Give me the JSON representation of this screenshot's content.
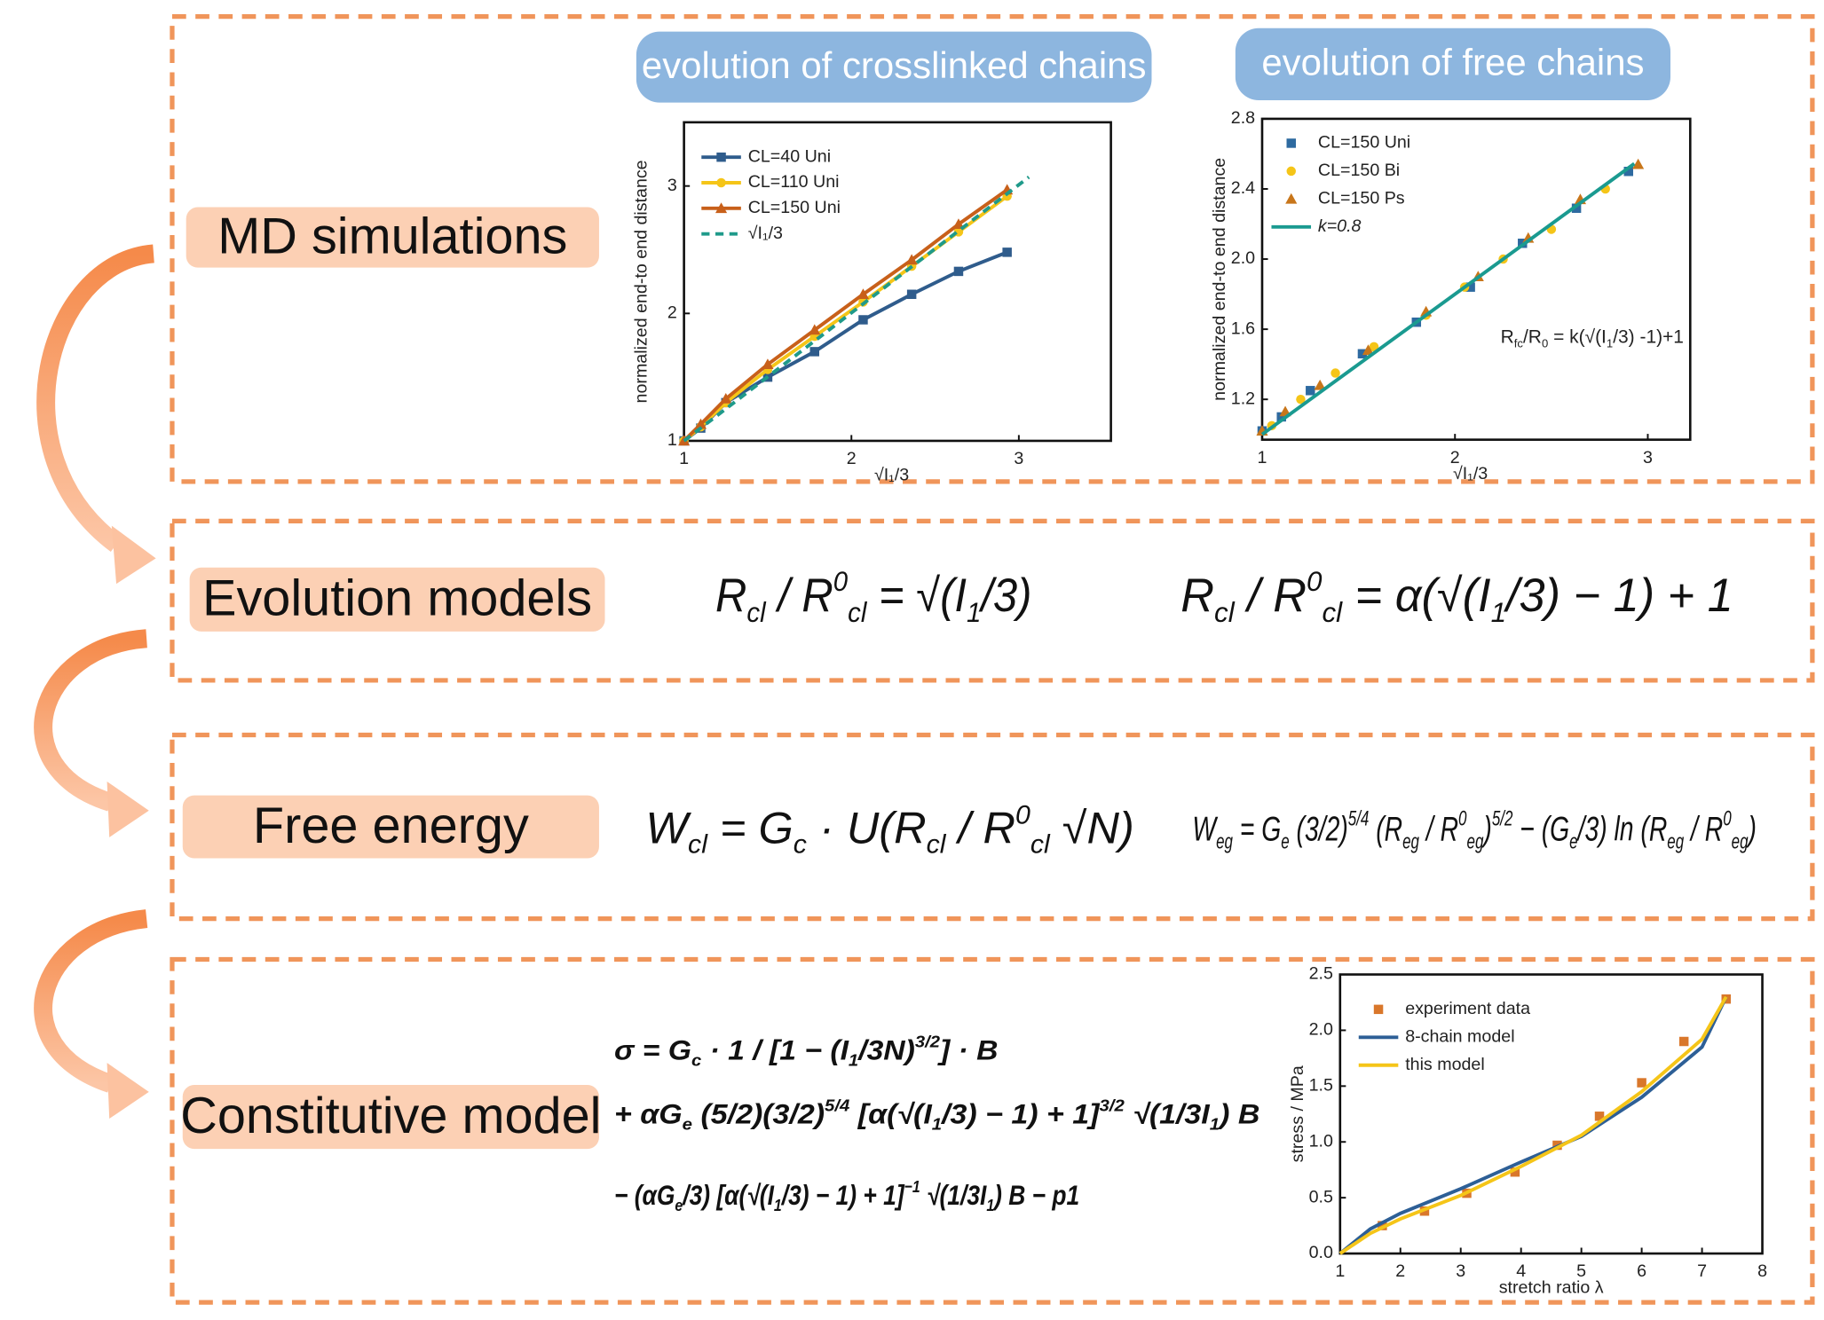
{
  "labels": [
    "MD simulations",
    "Evolution models",
    "Free energy",
    "Constitutive model"
  ],
  "headers": [
    "evolution of crosslinked chains",
    "evolution of free chains"
  ],
  "equations": {
    "evolution": [
      [
        "R",
        {
          "sub": "cl"
        },
        " / R",
        {
          "sup": "0"
        },
        {
          "sub": "cl"
        },
        " = √(I",
        {
          "sub": "1"
        },
        "/3)"
      ],
      [
        "R",
        {
          "sub": "cl"
        },
        " / R",
        {
          "sup": "0"
        },
        {
          "sub": "cl"
        },
        " = α(√(I",
        {
          "sub": "1"
        },
        "/3) − 1) + 1"
      ]
    ],
    "free_energy": [
      [
        "W",
        {
          "sub": "cl"
        },
        " = G",
        {
          "sub": "c"
        },
        " · U(R",
        {
          "sub": "cl"
        },
        " / R",
        {
          "sup": "0"
        },
        {
          "sub": "cl"
        },
        " √N)"
      ],
      [
        "W",
        {
          "sub": "eg"
        },
        " = G",
        {
          "sub": "e"
        },
        " (3/2)",
        {
          "sup": "5/4"
        },
        " (R",
        {
          "sub": "eg"
        },
        " / R",
        {
          "sup": "0"
        },
        {
          "sub": "eg"
        },
        ")",
        {
          "sup": "5/2"
        },
        " − (G",
        {
          "sub": "e"
        },
        "/3) ln (R",
        {
          "sub": "eg"
        },
        " / R",
        {
          "sup": "0"
        },
        {
          "sub": "eg"
        },
        ")"
      ]
    ],
    "constitutive": [
      [
        "σ = G",
        {
          "sub": "c"
        },
        " · 1 / [1 − (I",
        {
          "sub": "1"
        },
        "/3N)",
        {
          "sup": "3/2"
        },
        "] · B"
      ],
      [
        "+ αG",
        {
          "sub": "e"
        },
        " (5/2)(3/2)",
        {
          "sup": "5/4"
        },
        " [α(√(I",
        {
          "sub": "1"
        },
        "/3) − 1) + 1]",
        {
          "sup": "3/2"
        },
        " √(1/3I",
        {
          "sub": "1"
        },
        ") B"
      ],
      [
        "− (αG",
        {
          "sub": "e"
        },
        "/3) [α(√(I",
        {
          "sub": "1"
        },
        "/3) − 1) + 1]",
        {
          "sup": "−1"
        },
        " √(1/3I",
        {
          "sub": "1"
        },
        ") B − p1"
      ]
    ]
  },
  "chart_data": [
    {
      "type": "line",
      "xlabel": "√I₁/3",
      "ylabel": "normalized end-to end distance",
      "xlim": [
        1,
        3.55
      ],
      "ylim": [
        1,
        3.5
      ],
      "xticks": [
        1,
        2,
        3
      ],
      "yticks": [
        1,
        2,
        3
      ],
      "legend": "upper left",
      "x": [
        1,
        1.1,
        1.25,
        1.5,
        1.78,
        2.07,
        2.36,
        2.64,
        2.93
      ],
      "series": [
        {
          "name": "CL=40 Uni",
          "color": "#2f5c8c",
          "marker": "square",
          "values": [
            1,
            1.1,
            1.3,
            1.5,
            1.7,
            1.95,
            2.15,
            2.33,
            2.48
          ]
        },
        {
          "name": "CL=110 Uni",
          "color": "#f5c518",
          "marker": "circle",
          "values": [
            1,
            1.11,
            1.3,
            1.56,
            1.82,
            2.09,
            2.37,
            2.64,
            2.92
          ]
        },
        {
          "name": "CL=150 Uni",
          "color": "#c8601a",
          "marker": "triangle",
          "values": [
            1,
            1.13,
            1.33,
            1.6,
            1.87,
            2.15,
            2.42,
            2.7,
            2.97
          ]
        },
        {
          "name": "√I₁/3",
          "color": "#1f9a8a",
          "dash": true,
          "x": [
            1,
            3.06
          ],
          "values": [
            1,
            3.07
          ]
        }
      ]
    },
    {
      "type": "scatter",
      "ylabel": "normalized end-to end distance",
      "xlabel": "√I₁/3",
      "xlim": [
        1,
        3.22
      ],
      "ylim": [
        0.97,
        2.8
      ],
      "xticks": [
        1,
        2,
        3
      ],
      "yticks": [
        1.2,
        1.6,
        {
          "value": 2,
          "label": "2.0"
        },
        2.4,
        2.8
      ],
      "legend": "upper left",
      "series": [
        {
          "name": "CL=150 Uni",
          "color": "#2e6aa0",
          "marker": "square",
          "x": [
            1,
            1.1,
            1.25,
            1.52,
            1.8,
            2.08,
            2.35,
            2.63,
            2.9
          ],
          "values": [
            1.02,
            1.1,
            1.25,
            1.46,
            1.64,
            1.84,
            2.09,
            2.29,
            2.5
          ]
        },
        {
          "name": "CL=150 Bi",
          "color": "#f5c518",
          "marker": "circle",
          "x": [
            1.05,
            1.2,
            1.38,
            1.58,
            1.85,
            2.05,
            2.25,
            2.5,
            2.78
          ],
          "values": [
            1.05,
            1.2,
            1.35,
            1.5,
            1.68,
            1.84,
            2.0,
            2.17,
            2.4
          ]
        },
        {
          "name": "CL=150 Ps",
          "color": "#c8761a",
          "marker": "triangle",
          "x": [
            1,
            1.12,
            1.3,
            1.55,
            1.85,
            2.12,
            2.38,
            2.65,
            2.95
          ],
          "values": [
            1.02,
            1.13,
            1.28,
            1.48,
            1.7,
            1.9,
            2.12,
            2.34,
            2.54
          ]
        },
        {
          "name": "k=0.8",
          "color": "#1a9a90",
          "line": true,
          "x": [
            1,
            2.93
          ],
          "values": [
            1,
            2.544
          ]
        }
      ],
      "annotation": [
        "R",
        {
          "sub": "fc"
        },
        "/R",
        {
          "sub": "0"
        },
        " = k(√(I",
        {
          "sub": "1"
        },
        "/3) -1)+1"
      ]
    },
    {
      "type": "line",
      "xlabel": "stretch ratio λ",
      "ylabel": "stress / MPa",
      "xlim": [
        1,
        8
      ],
      "ylim": [
        0,
        2.5
      ],
      "xticks": [
        1,
        2,
        3,
        4,
        5,
        6,
        7,
        8
      ],
      "yticks": [
        {
          "value": 0,
          "label": "0.0"
        },
        0.5,
        {
          "value": 1,
          "label": "1.0"
        },
        1.5,
        {
          "value": 2,
          "label": "2.0"
        },
        2.5
      ],
      "legend": "upper left",
      "series": [
        {
          "name": "experiment data",
          "color": "#d9772b",
          "marker": "square",
          "line": false,
          "x": [
            1.7,
            2.4,
            3.1,
            3.9,
            4.6,
            5.3,
            6.0,
            6.7,
            7.4
          ],
          "values": [
            0.25,
            0.38,
            0.54,
            0.73,
            0.97,
            1.23,
            1.53,
            1.9,
            2.28
          ]
        },
        {
          "name": "8-chain model",
          "color": "#2d5f96",
          "x": [
            1,
            1.5,
            2,
            3,
            4,
            5,
            6,
            7,
            7.4
          ],
          "values": [
            0,
            0.22,
            0.36,
            0.58,
            0.82,
            1.05,
            1.4,
            1.85,
            2.3
          ]
        },
        {
          "name": "this model",
          "color": "#f5c518",
          "x": [
            1,
            1.5,
            2,
            3,
            4,
            5,
            6,
            7,
            7.4
          ],
          "values": [
            0,
            0.18,
            0.31,
            0.52,
            0.78,
            1.06,
            1.45,
            1.92,
            2.3
          ]
        }
      ]
    }
  ]
}
